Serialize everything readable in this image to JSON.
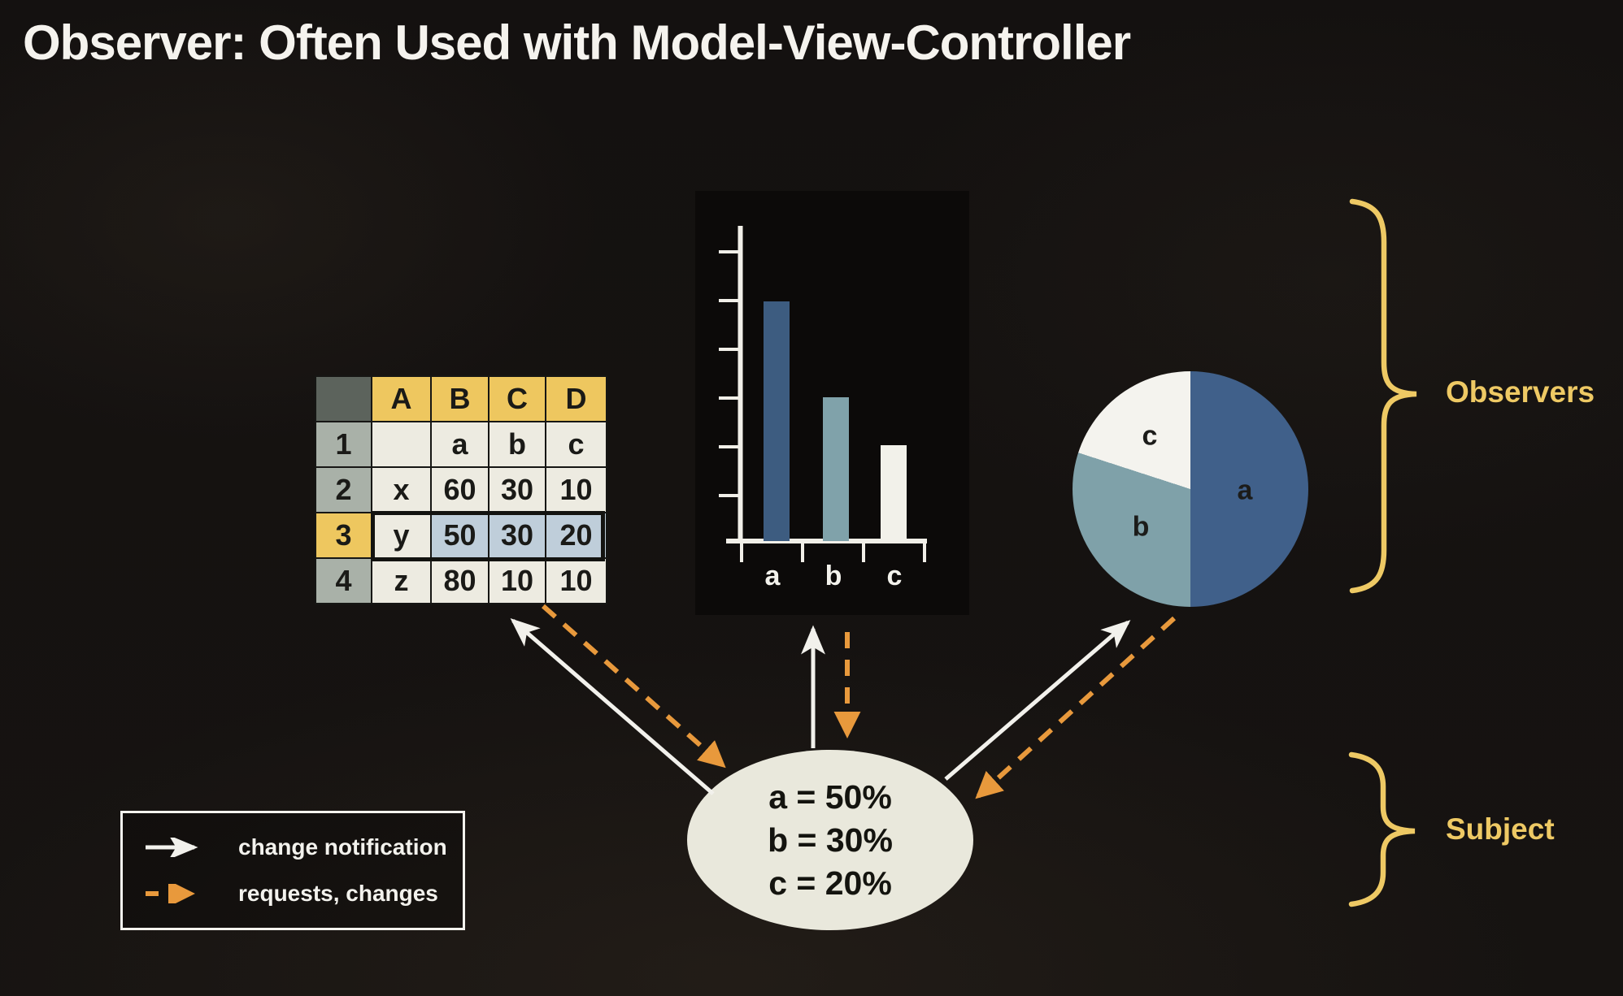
{
  "slide": {
    "title": "Observer: Often Used with Model-View-Controller"
  },
  "spreadsheet": {
    "col_headers": [
      "",
      "A",
      "B",
      "C",
      "D"
    ],
    "rows": [
      {
        "num": "1",
        "cells": [
          "",
          "a",
          "b",
          "c"
        ]
      },
      {
        "num": "2",
        "cells": [
          "x",
          "60",
          "30",
          "10"
        ]
      },
      {
        "num": "3",
        "cells": [
          "y",
          "50",
          "30",
          "20"
        ],
        "selected": true
      },
      {
        "num": "4",
        "cells": [
          "z",
          "80",
          "10",
          "10"
        ]
      }
    ]
  },
  "chart_data": [
    {
      "type": "bar",
      "categories": [
        "a",
        "b",
        "c"
      ],
      "values": [
        50,
        30,
        20
      ],
      "title": "",
      "xlabel": "",
      "ylabel": "",
      "ylim": [
        0,
        70
      ],
      "ytick_interval": 10,
      "grid": false,
      "legend_position": "none",
      "colors": [
        "#3d5c80",
        "#80a2aa",
        "#f2f1ea"
      ]
    },
    {
      "type": "pie",
      "categories": [
        "a",
        "b",
        "c"
      ],
      "values": [
        50,
        30,
        20
      ],
      "start_angle": "top",
      "direction": "clockwise",
      "colors": [
        "#40608a",
        "#7fa1a9",
        "#f4f3ee"
      ]
    }
  ],
  "subject": {
    "lines": [
      "a = 50%",
      "b = 30%",
      "c = 20%"
    ]
  },
  "legend": {
    "items": [
      {
        "label": "change notification",
        "arrow": "solid-white-arrow"
      },
      {
        "label": "requests, changes",
        "arrow": "dashed-orange-arrow"
      }
    ]
  },
  "annotations": {
    "observers_label": "Observers",
    "subject_label": "Subject"
  },
  "colors": {
    "accent_gold": "#eec964",
    "arrow_orange": "#e8993c",
    "arrow_white": "#f2f1ec",
    "table_header_gold": "#eec75f",
    "table_selected_blue": "#bfceda",
    "ellipse_fill": "#e9e8dc"
  }
}
